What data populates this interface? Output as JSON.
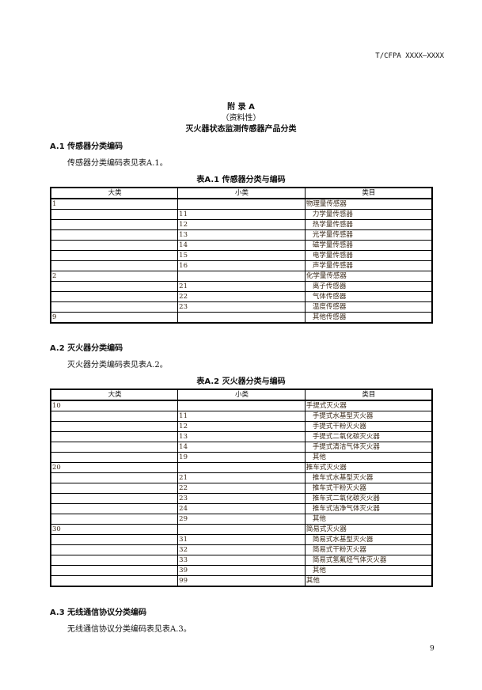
{
  "header": {
    "doc_number": "T/CFPA XXXX—XXXX"
  },
  "appendix": {
    "label": "附 录 A",
    "nature": "（资料性）",
    "title": "灭火器状态监测传感器产品分类"
  },
  "sections": [
    {
      "heading": "A.1  传感器分类编码",
      "text": "传感器分类编码表见表A.1。",
      "caption": "表A.1 传感器分类与编码"
    },
    {
      "heading": "A.2  灭火器分类编码",
      "text": "灭火器分类编码表见表A.2。",
      "caption": "表A.2 灭火器分类与编码"
    },
    {
      "heading": "A.3  无线通信协议分类编码",
      "text": "无线通信协议分类编码表见表A.3。"
    }
  ],
  "table_headers": [
    "大类",
    "小类",
    "类目"
  ],
  "table1": [
    [
      "1",
      "",
      "物理量传感器",
      false
    ],
    [
      "",
      "11",
      "力学量传感器",
      true
    ],
    [
      "",
      "12",
      "热学量传感器",
      true
    ],
    [
      "",
      "13",
      "光学量传感器",
      true
    ],
    [
      "",
      "14",
      "磁学量传感器",
      true
    ],
    [
      "",
      "15",
      "电学量传感器",
      true
    ],
    [
      "",
      "16",
      "声学量传感器",
      true
    ],
    [
      "2",
      "",
      "化学量传感器",
      false
    ],
    [
      "",
      "21",
      "离子传感器",
      true
    ],
    [
      "",
      "22",
      "气体传感器",
      true
    ],
    [
      "",
      "23",
      "温度传感器",
      true
    ],
    [
      "9",
      "",
      "其他传感器",
      true
    ]
  ],
  "table2": [
    [
      "10",
      "",
      "手提式灭火器",
      false
    ],
    [
      "",
      "11",
      "手提式水基型灭火器",
      true
    ],
    [
      "",
      "12",
      "手提式干粉灭火器",
      true
    ],
    [
      "",
      "13",
      "手提式二氧化碳灭火器",
      true
    ],
    [
      "",
      "14",
      "手提式清洁气体灭火器",
      true
    ],
    [
      "",
      "19",
      "其他",
      true
    ],
    [
      "20",
      "",
      "推车式灭火器",
      false
    ],
    [
      "",
      "21",
      "推车式水基型灭火器",
      true
    ],
    [
      "",
      "22",
      "推车式干粉灭火器",
      true
    ],
    [
      "",
      "23",
      "推车式二氧化碳灭火器",
      true
    ],
    [
      "",
      "24",
      "推车式洁净气体灭火器",
      true
    ],
    [
      "",
      "29",
      "其他",
      true
    ],
    [
      "30",
      "",
      "简易式灭火器",
      false
    ],
    [
      "",
      "31",
      "简易式水基型灭火器",
      true
    ],
    [
      "",
      "32",
      "简易式干粉灭火器",
      true
    ],
    [
      "",
      "33",
      "简易式氢氟烃气体灭火器",
      true
    ],
    [
      "",
      "39",
      "其他",
      true
    ],
    [
      "",
      "99",
      "其他",
      false
    ]
  ],
  "page_number": "9"
}
